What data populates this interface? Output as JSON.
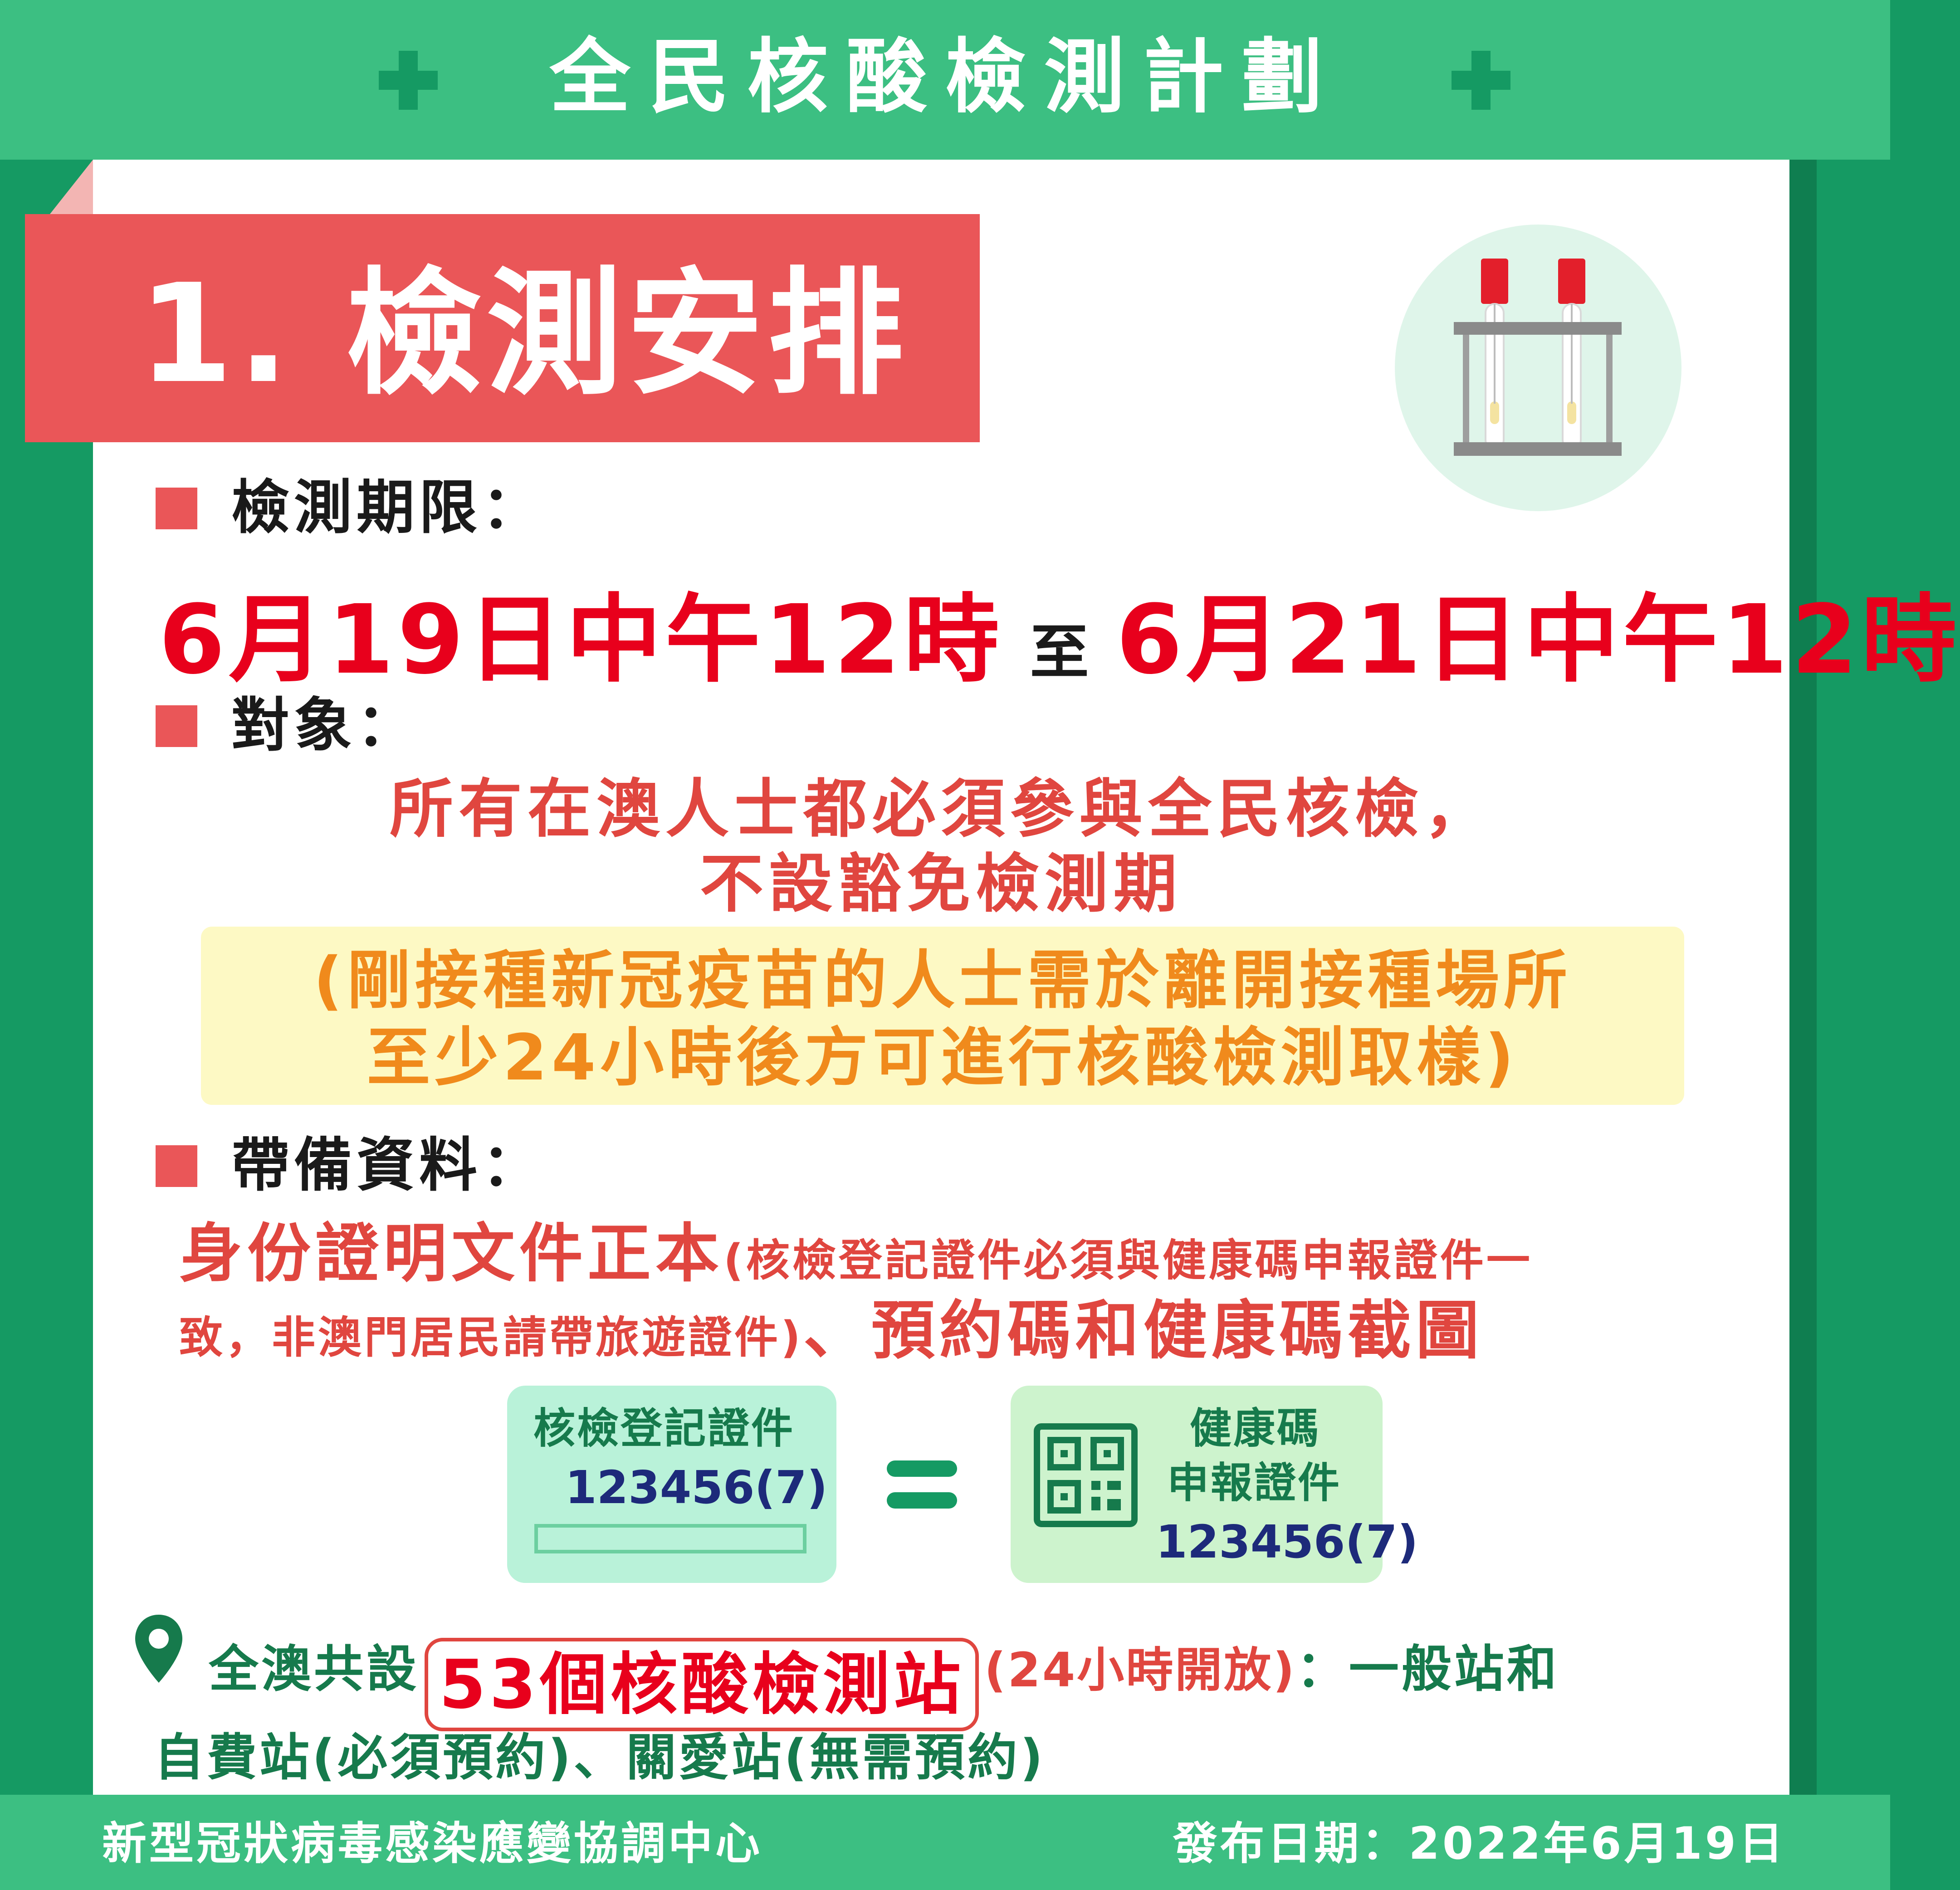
{
  "header": {
    "title": "全民核酸檢測計劃",
    "icon": "plus-icon"
  },
  "banner": {
    "title": "1. 檢測安排"
  },
  "illustration": {
    "icon": "test-tube-rack-icon"
  },
  "sections": {
    "period": {
      "label": "檢測期限：",
      "start": "6月19日中午12時",
      "connector": "至",
      "end": "6月21日中午12時"
    },
    "target": {
      "label": "對象：",
      "line1": "所有在澳人士都必須參與全民核檢，",
      "line2": "不設豁免檢測期",
      "note_line1": "(剛接種新冠疫苗的人士需於離開接種場所",
      "note_line2": "至少24小時後方可進行核酸檢測取樣)"
    },
    "documents": {
      "label": "帶備資料：",
      "main": "身份證明文件正本",
      "detail_part1": "(核檢登記證件必須與健康碼申報證件一",
      "detail_part2": "致，非澳門居民請帶旅遊證件)",
      "separator": "、",
      "tail": "預約碼和健康碼截圖"
    }
  },
  "id_cards": {
    "left_title": "核檢登記證件",
    "left_number": "123456(7)",
    "equals_icon": "equals-icon",
    "right_title_line1": "健康碼",
    "right_title_line2": "申報證件",
    "right_number": "123456(7)",
    "qr_icon": "qr-code-icon"
  },
  "stations": {
    "icon": "location-pin-icon",
    "prefix": "全澳共設",
    "count_text": "53個核酸檢測站",
    "hours": "(24小時開放)",
    "suffix": "：一般站和",
    "line2": "自費站(必須預約)、關愛站(無需預約)"
  },
  "footer": {
    "organization": "新型冠狀病毒感染應變協調中心",
    "publish_date": "發布日期：2022年6月19日"
  },
  "colors": {
    "header_green": "#3cbf82",
    "dark_green": "#159a63",
    "banner_red": "#ea5658",
    "date_red": "#e8001c",
    "note_orange": "#f08a1c",
    "note_bg": "#fdf9c4"
  }
}
